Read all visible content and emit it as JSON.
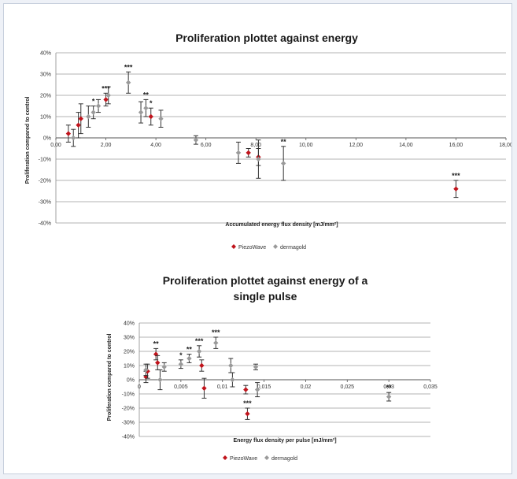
{
  "chart_data": [
    {
      "type": "scatter",
      "title": "Proliferation plottet against energy",
      "xlabel": "Accumulated  energy flux density [mJ/mm²]",
      "ylabel": "Proliferation compared to control",
      "xlim": [
        0,
        18
      ],
      "ylim": [
        -0.4,
        0.4
      ],
      "x_ticks": [
        "0,00",
        "2,00",
        "4,00",
        "6,00",
        "8,00",
        "10,00",
        "12,00",
        "14,00",
        "16,00",
        "18,00"
      ],
      "y_ticks": [
        "40%",
        "30%",
        "20%",
        "10%",
        "0%",
        "-10%",
        "-20%",
        "-30%",
        "-40%"
      ],
      "grid": true,
      "legend_position": "bottom",
      "colors": {
        "PiezoWave": "#c0141c",
        "dermagold": "#9a9a9a"
      },
      "series": [
        {
          "name": "PiezoWave",
          "points": [
            {
              "x": 0.5,
              "y": 0.02,
              "err": 0.04,
              "sig": ""
            },
            {
              "x": 0.9,
              "y": 0.06,
              "err": 0.06,
              "sig": ""
            },
            {
              "x": 1.0,
              "y": 0.09,
              "err": 0.07,
              "sig": ""
            },
            {
              "x": 2.0,
              "y": 0.18,
              "err": 0.03,
              "sig": "***"
            },
            {
              "x": 3.8,
              "y": 0.1,
              "err": 0.04,
              "sig": "*"
            },
            {
              "x": 7.7,
              "y": -0.07,
              "err": 0.02,
              "sig": ""
            },
            {
              "x": 8.1,
              "y": -0.09,
              "err": 0.04,
              "sig": ""
            },
            {
              "x": 16.0,
              "y": -0.24,
              "err": 0.04,
              "sig": "***"
            }
          ]
        },
        {
          "name": "dermagold",
          "points": [
            {
              "x": 0.7,
              "y": 0.0,
              "err": 0.04,
              "sig": ""
            },
            {
              "x": 1.3,
              "y": 0.1,
              "err": 0.05,
              "sig": ""
            },
            {
              "x": 1.5,
              "y": 0.12,
              "err": 0.03,
              "sig": "*"
            },
            {
              "x": 1.7,
              "y": 0.15,
              "err": 0.03,
              "sig": ""
            },
            {
              "x": 2.1,
              "y": 0.2,
              "err": 0.04,
              "sig": ""
            },
            {
              "x": 2.9,
              "y": 0.26,
              "err": 0.05,
              "sig": "***"
            },
            {
              "x": 3.4,
              "y": 0.12,
              "err": 0.05,
              "sig": ""
            },
            {
              "x": 3.6,
              "y": 0.14,
              "err": 0.04,
              "sig": "**"
            },
            {
              "x": 4.2,
              "y": 0.09,
              "err": 0.04,
              "sig": ""
            },
            {
              "x": 5.6,
              "y": -0.01,
              "err": 0.02,
              "sig": ""
            },
            {
              "x": 7.3,
              "y": -0.07,
              "err": 0.05,
              "sig": ""
            },
            {
              "x": 8.1,
              "y": -0.1,
              "err": 0.09,
              "sig": ""
            },
            {
              "x": 9.1,
              "y": -0.12,
              "err": 0.08,
              "sig": "**"
            }
          ]
        }
      ]
    },
    {
      "type": "scatter",
      "title": "Proliferation plottet against energy of a single pulse",
      "title_lines": [
        "Proliferation plottet against energy of a",
        "single pulse"
      ],
      "xlabel": "Energy flux density per pulse [mJ/mm²]",
      "ylabel": "Proliferation compared to control",
      "xlim": [
        0,
        0.035
      ],
      "ylim": [
        -0.4,
        0.4
      ],
      "x_ticks": [
        "0",
        "0,005",
        "0,01",
        "0,015",
        "0,02",
        "0,025",
        "0,03",
        "0,035"
      ],
      "y_ticks": [
        "40%",
        "30%",
        "20%",
        "10%",
        "0%",
        "-10%",
        "-20%",
        "-30%",
        "-40%"
      ],
      "grid": true,
      "legend_position": "bottom",
      "colors": {
        "PiezoWave": "#c0141c",
        "dermagold": "#9a9a9a"
      },
      "series": [
        {
          "name": "PiezoWave",
          "points": [
            {
              "x": 0.0008,
              "y": 0.02,
              "err": 0.04,
              "sig": ""
            },
            {
              "x": 0.001,
              "y": 0.06,
              "err": 0.05,
              "sig": ""
            },
            {
              "x": 0.002,
              "y": 0.18,
              "err": 0.04,
              "sig": "**"
            },
            {
              "x": 0.0022,
              "y": 0.12,
              "err": 0.05,
              "sig": ""
            },
            {
              "x": 0.0075,
              "y": 0.1,
              "err": 0.04,
              "sig": ""
            },
            {
              "x": 0.0078,
              "y": -0.06,
              "err": 0.07,
              "sig": ""
            },
            {
              "x": 0.0128,
              "y": -0.07,
              "err": 0.03,
              "sig": ""
            },
            {
              "x": 0.013,
              "y": -0.24,
              "err": 0.04,
              "sig": "***"
            }
          ]
        },
        {
          "name": "dermagold",
          "points": [
            {
              "x": 0.0008,
              "y": 0.07,
              "err": 0.04,
              "sig": ""
            },
            {
              "x": 0.0025,
              "y": 0.0,
              "err": 0.07,
              "sig": ""
            },
            {
              "x": 0.003,
              "y": 0.09,
              "err": 0.03,
              "sig": ""
            },
            {
              "x": 0.005,
              "y": 0.11,
              "err": 0.03,
              "sig": "*"
            },
            {
              "x": 0.006,
              "y": 0.15,
              "err": 0.03,
              "sig": "**"
            },
            {
              "x": 0.0072,
              "y": 0.2,
              "err": 0.04,
              "sig": "***"
            },
            {
              "x": 0.0092,
              "y": 0.26,
              "err": 0.04,
              "sig": "***"
            },
            {
              "x": 0.011,
              "y": 0.1,
              "err": 0.05,
              "sig": ""
            },
            {
              "x": 0.0112,
              "y": 0.0,
              "err": 0.05,
              "sig": ""
            },
            {
              "x": 0.014,
              "y": 0.09,
              "err": 0.02,
              "sig": ""
            },
            {
              "x": 0.0142,
              "y": -0.07,
              "err": 0.05,
              "sig": ""
            },
            {
              "x": 0.03,
              "y": -0.12,
              "err": 0.03,
              "sig": "**"
            }
          ]
        }
      ]
    }
  ]
}
